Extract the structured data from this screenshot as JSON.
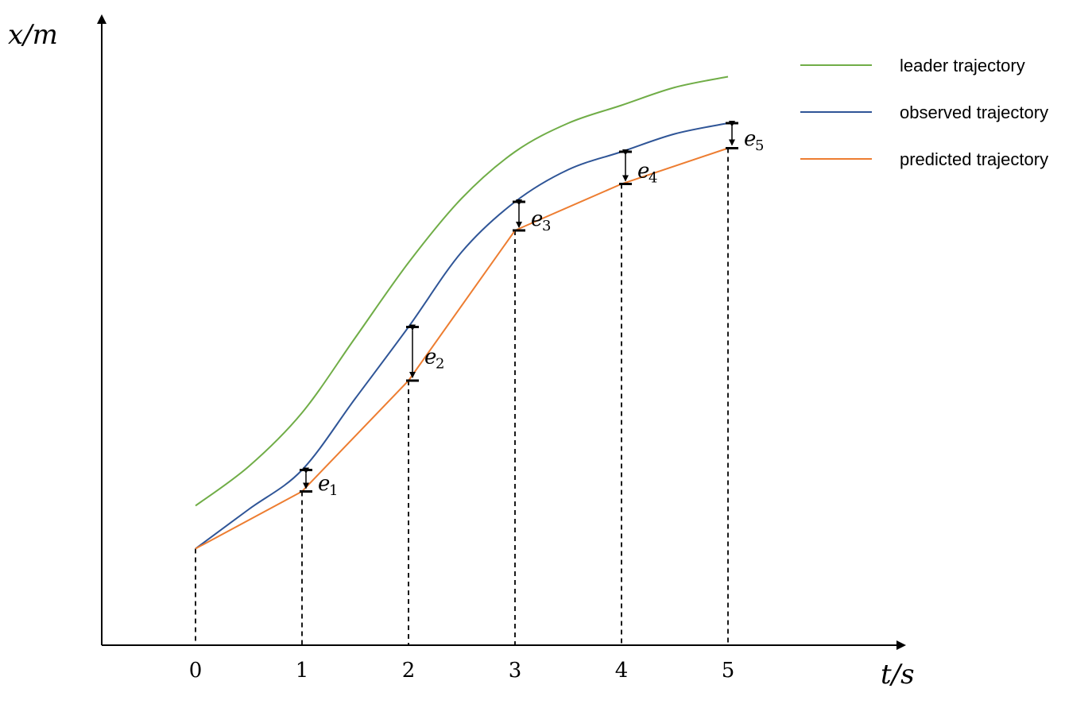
{
  "chart_data": {
    "type": "line",
    "xlabel": "t/s",
    "ylabel": "x/m",
    "x_ticks": [
      "0",
      "1",
      "2",
      "3",
      "4",
      "5"
    ],
    "series": [
      {
        "name": "leader trajectory",
        "color": "#70AD47",
        "points": [
          [
            0,
            3.9
          ],
          [
            0.5,
            5.0
          ],
          [
            1,
            6.5
          ],
          [
            1.5,
            8.6
          ],
          [
            2,
            10.7
          ],
          [
            2.5,
            12.5
          ],
          [
            3,
            13.8
          ],
          [
            3.5,
            14.6
          ],
          [
            4,
            15.1
          ],
          [
            4.5,
            15.6
          ],
          [
            5,
            15.9
          ]
        ]
      },
      {
        "name": "observed trajectory",
        "color": "#2F5597",
        "points": [
          [
            0,
            2.7
          ],
          [
            0.5,
            3.8
          ],
          [
            1,
            4.9
          ],
          [
            1.5,
            6.9
          ],
          [
            2,
            8.9
          ],
          [
            2.5,
            11.0
          ],
          [
            3,
            12.4
          ],
          [
            3.5,
            13.3
          ],
          [
            4,
            13.8
          ],
          [
            4.5,
            14.3
          ],
          [
            5,
            14.6
          ]
        ]
      },
      {
        "name": "predicted trajectory",
        "color": "#ED7D31",
        "points": [
          [
            0,
            2.7
          ],
          [
            1,
            4.3
          ],
          [
            2,
            7.4
          ],
          [
            3,
            11.6
          ],
          [
            4,
            12.9
          ],
          [
            5,
            13.9
          ]
        ]
      }
    ],
    "errors": [
      {
        "x": 1,
        "label": "e",
        "sub": "1"
      },
      {
        "x": 2,
        "label": "e",
        "sub": "2"
      },
      {
        "x": 3,
        "label": "e",
        "sub": "3"
      },
      {
        "x": 4,
        "label": "e",
        "sub": "4"
      },
      {
        "x": 5,
        "label": "e",
        "sub": "5"
      }
    ],
    "grid": false,
    "legend_position": "top-right"
  }
}
